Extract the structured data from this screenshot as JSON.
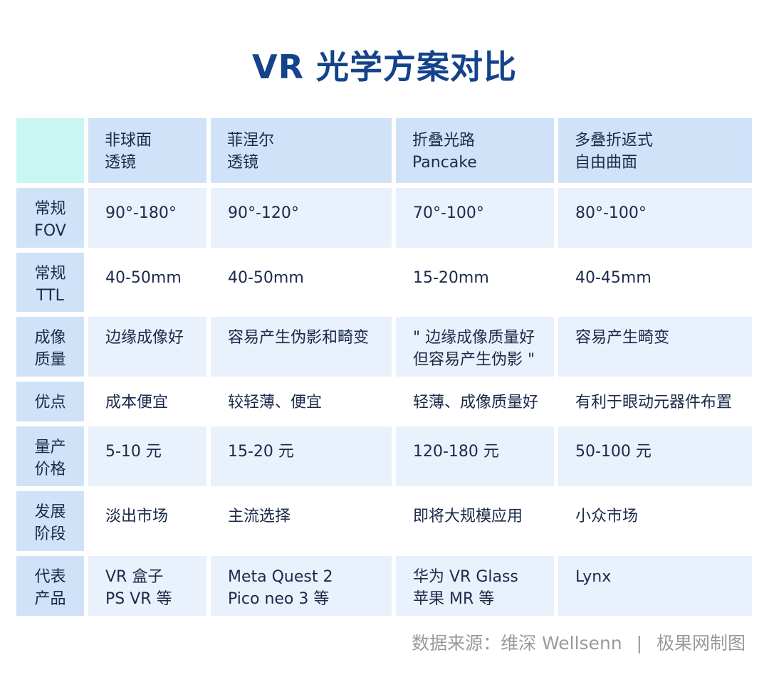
{
  "title": "VR 光学方案对比",
  "table": {
    "headers": [
      [
        "非球面",
        "透镜"
      ],
      [
        "菲涅尔",
        "透镜"
      ],
      [
        "折叠光路",
        "Pancake"
      ],
      [
        "多叠折返式",
        "自由曲面"
      ]
    ],
    "rows": [
      {
        "label": [
          "常规",
          "FOV"
        ],
        "cells": [
          [
            "90°-180°"
          ],
          [
            "90°-120°"
          ],
          [
            "70°-100°"
          ],
          [
            "80°-100°"
          ]
        ]
      },
      {
        "label": [
          "常规",
          "TTL"
        ],
        "cells": [
          [
            "40-50mm"
          ],
          [
            "40-50mm"
          ],
          [
            "15-20mm"
          ],
          [
            "40-45mm"
          ]
        ]
      },
      {
        "label": [
          "成像",
          "质量"
        ],
        "cells": [
          [
            "边缘成像好"
          ],
          [
            "容易产生伪影和畸变"
          ],
          [
            "\" 边缘成像质量好",
            "但容易产生伪影 \""
          ],
          [
            "容易产生畸变"
          ]
        ]
      },
      {
        "label": [
          "优点"
        ],
        "cells": [
          [
            "成本便宜"
          ],
          [
            "较轻薄、便宜"
          ],
          [
            "轻薄、成像质量好"
          ],
          [
            "有利于眼动元器件布置"
          ]
        ]
      },
      {
        "label": [
          "量产",
          "价格"
        ],
        "cells": [
          [
            "5-10 元"
          ],
          [
            "15-20 元"
          ],
          [
            "120-180 元"
          ],
          [
            "50-100 元"
          ]
        ]
      },
      {
        "label": [
          "发展",
          "阶段"
        ],
        "cells": [
          [
            "淡出市场"
          ],
          [
            "主流选择"
          ],
          [
            "即将大规模应用"
          ],
          [
            "小众市场"
          ]
        ]
      },
      {
        "label": [
          "代表",
          "产品"
        ],
        "cells": [
          [
            "VR 盒子",
            "PS VR 等"
          ],
          [
            "Meta Quest 2",
            "Pico neo 3 等"
          ],
          [
            "华为 VR Glass",
            "苹果 MR 等"
          ],
          [
            "Lynx"
          ]
        ]
      }
    ]
  },
  "footer": {
    "source": "数据来源：维深 Wellsenn",
    "separator": "|",
    "credit": "极果网制图"
  },
  "colors": {
    "title": "#14438c",
    "header_bg": "#cfe2f8",
    "corner_bg": "#c9f6f1",
    "alt_row_bg": "#e9f1fc",
    "text": "#1b2a4a"
  }
}
